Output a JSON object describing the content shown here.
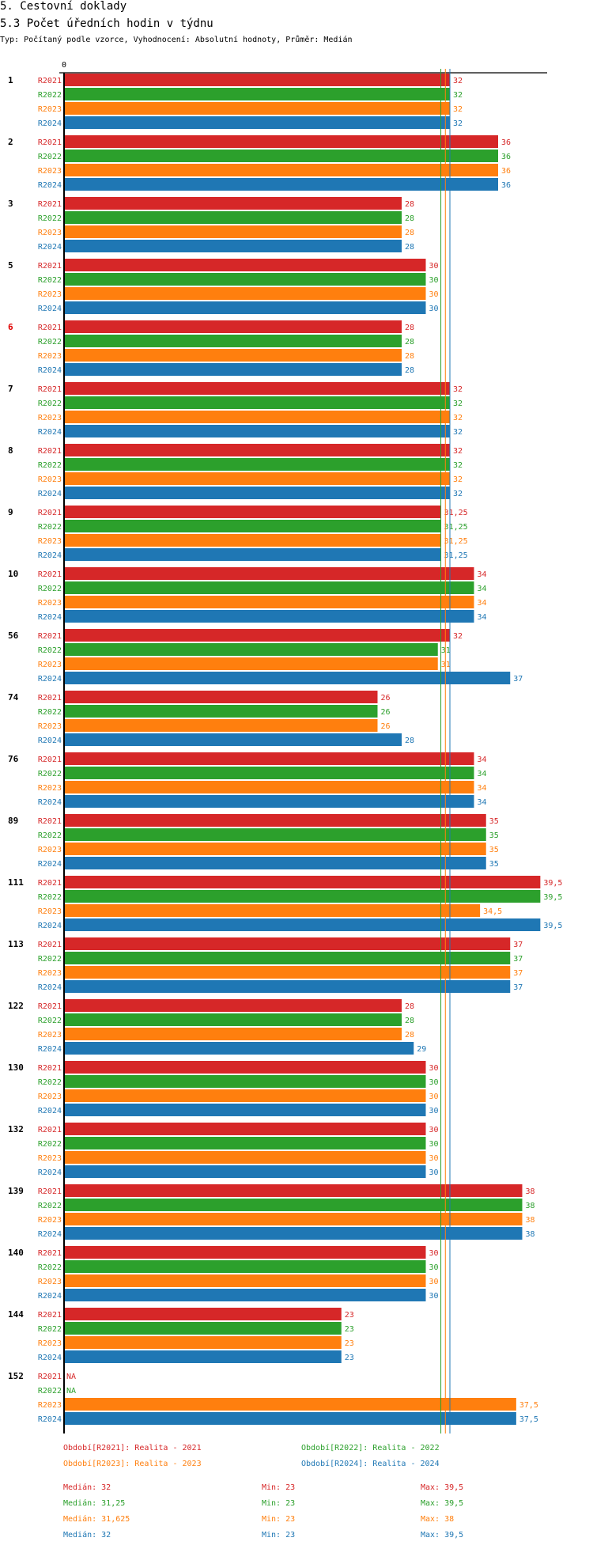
{
  "header": {
    "section_title": "5. Cestovní doklady",
    "chart_title": "5.3 Počet úředních hodin v týdnu",
    "subtitle": "Typ: Počítaný podle vzorce, Vyhodnocení: Absolutní hodnoty, Průměr: Medián"
  },
  "chart_data": {
    "type": "bar",
    "orientation": "horizontal",
    "title": "5.3 Počet úředních hodin v týdnu",
    "xlim": [
      0,
      40
    ],
    "x_tick_labels": [
      "0"
    ],
    "categories": [
      "1",
      "2",
      "3",
      "5",
      "6",
      "7",
      "8",
      "9",
      "10",
      "56",
      "74",
      "76",
      "89",
      "111",
      "113",
      "122",
      "130",
      "132",
      "139",
      "140",
      "144",
      "152"
    ],
    "highlighted_categories": [
      "6"
    ],
    "series": [
      {
        "name": "R2021",
        "color": "#d62728",
        "values": [
          32,
          36,
          28,
          30,
          28,
          32,
          32,
          31.25,
          34,
          32,
          26,
          34,
          35,
          39.5,
          37,
          28,
          30,
          30,
          38,
          30,
          23,
          null
        ]
      },
      {
        "name": "R2022",
        "color": "#2ca02c",
        "values": [
          32,
          36,
          28,
          30,
          28,
          32,
          32,
          31.25,
          34,
          31,
          26,
          34,
          35,
          39.5,
          37,
          28,
          30,
          30,
          38,
          30,
          23,
          null
        ]
      },
      {
        "name": "R2023",
        "color": "#ff7f0e",
        "values": [
          32,
          36,
          28,
          30,
          28,
          32,
          32,
          31.25,
          34,
          31,
          26,
          34,
          35,
          34.5,
          37,
          28,
          30,
          30,
          38,
          30,
          23,
          37.5
        ]
      },
      {
        "name": "R2024",
        "color": "#1f77b4",
        "values": [
          32,
          36,
          28,
          30,
          28,
          32,
          32,
          31.25,
          34,
          37,
          28,
          34,
          35,
          39.5,
          37,
          29,
          30,
          30,
          38,
          30,
          23,
          37.5
        ]
      }
    ],
    "na_label": "NA",
    "median_lines": [
      32,
      31.25,
      31.625,
      32
    ],
    "legend": [
      {
        "label": "Období[R2021]: Realita - 2021"
      },
      {
        "label": "Období[R2022]: Realita - 2022"
      },
      {
        "label": "Období[R2023]: Realita - 2023"
      },
      {
        "label": "Období[R2024]: Realita - 2024"
      }
    ],
    "stats": [
      {
        "median": "Medián: 32",
        "min": "Min: 23",
        "max": "Max: 39,5"
      },
      {
        "median": "Medián: 31,25",
        "min": "Min: 23",
        "max": "Max: 39,5"
      },
      {
        "median": "Medián: 31,625",
        "min": "Min: 23",
        "max": "Max: 38"
      },
      {
        "median": "Medián: 32",
        "min": "Min: 23",
        "max": "Max: 39,5"
      }
    ]
  }
}
